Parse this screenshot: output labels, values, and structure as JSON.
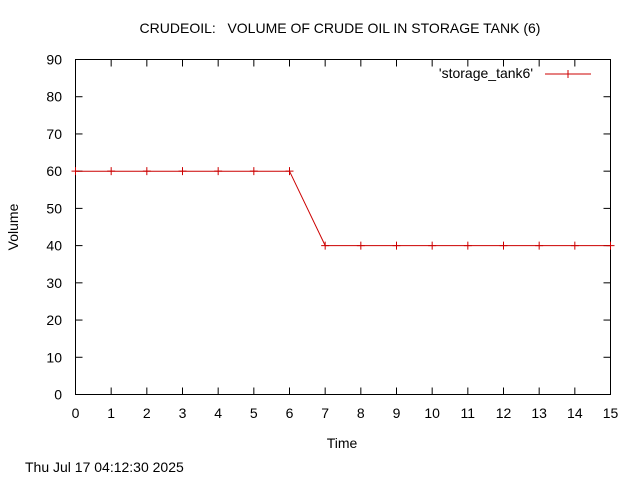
{
  "chart_data": {
    "type": "line",
    "title": "CRUDEOIL:   VOLUME OF CRUDE OIL IN STORAGE TANK (6)",
    "xlabel": "Time",
    "ylabel": "Volume",
    "xlim": [
      0,
      15
    ],
    "ylim": [
      0,
      90
    ],
    "xticks": [
      "0",
      "1",
      "2",
      "3",
      "4",
      "5",
      "6",
      "7",
      "8",
      "9",
      "10",
      "11",
      "12",
      "13",
      "14",
      "15"
    ],
    "yticks": [
      "0",
      "10",
      "20",
      "30",
      "40",
      "50",
      "60",
      "70",
      "80",
      "90"
    ],
    "grid": false,
    "legend_position": "top-right",
    "series": [
      {
        "name": "'storage_tank6'",
        "color": "#cc0000",
        "marker": "plus",
        "x": [
          0,
          1,
          2,
          3,
          4,
          5,
          6,
          7,
          8,
          9,
          10,
          11,
          12,
          13,
          14,
          15
        ],
        "y": [
          60,
          60,
          60,
          60,
          60,
          60,
          60,
          40,
          40,
          40,
          40,
          40,
          40,
          40,
          40,
          40
        ]
      }
    ]
  },
  "timestamp": "Thu Jul 17 04:12:30 2025"
}
